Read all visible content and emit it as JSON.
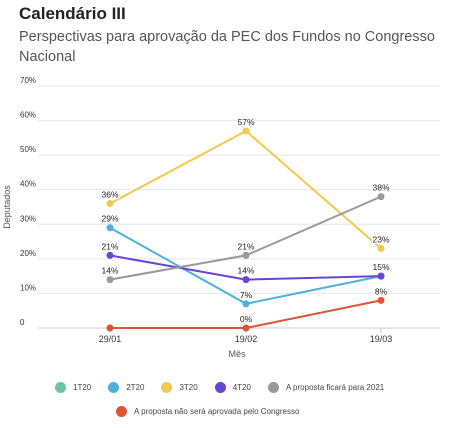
{
  "title": "Calendário III",
  "subtitle": "Perspectivas para aprovação da PEC dos Fundos no Congresso Nacional",
  "chart_data": {
    "type": "line",
    "xlabel": "Mês",
    "ylabel": "Deputados",
    "categories": [
      "29/01",
      "19/02",
      "19/03"
    ],
    "ylim": [
      0,
      70
    ],
    "yticks": [
      0,
      10,
      20,
      30,
      40,
      50,
      60,
      70
    ],
    "ytick_labels": [
      "0",
      "10%",
      "20%",
      "30%",
      "40%",
      "50%",
      "60%",
      "70%"
    ],
    "grid": true,
    "legend_position": "bottom",
    "series": [
      {
        "name": "1T20",
        "color": "#6cc6a1",
        "values": [
          null,
          null,
          null
        ],
        "labels": [
          "",
          "",
          ""
        ]
      },
      {
        "name": "2T20",
        "color": "#4db1e0",
        "values": [
          29,
          7,
          15
        ],
        "labels": [
          "29%",
          "7%",
          "15%"
        ]
      },
      {
        "name": "3T20",
        "color": "#f2c94c",
        "values": [
          36,
          57,
          23
        ],
        "labels": [
          "36%",
          "57%",
          "23%"
        ]
      },
      {
        "name": "4T20",
        "color": "#6845d6",
        "values": [
          21,
          14,
          15
        ],
        "labels": [
          "21%",
          "14%",
          "15%"
        ]
      },
      {
        "name": "A proposta ficará para 2021",
        "color": "#999999",
        "values": [
          14,
          21,
          38
        ],
        "labels": [
          "14%",
          "21%",
          "38%"
        ]
      },
      {
        "name": "A proposta não será aprovada pelo Congresso",
        "color": "#e05433",
        "values": [
          0,
          0,
          8
        ],
        "labels": [
          "",
          "0%",
          "8%"
        ]
      }
    ]
  }
}
